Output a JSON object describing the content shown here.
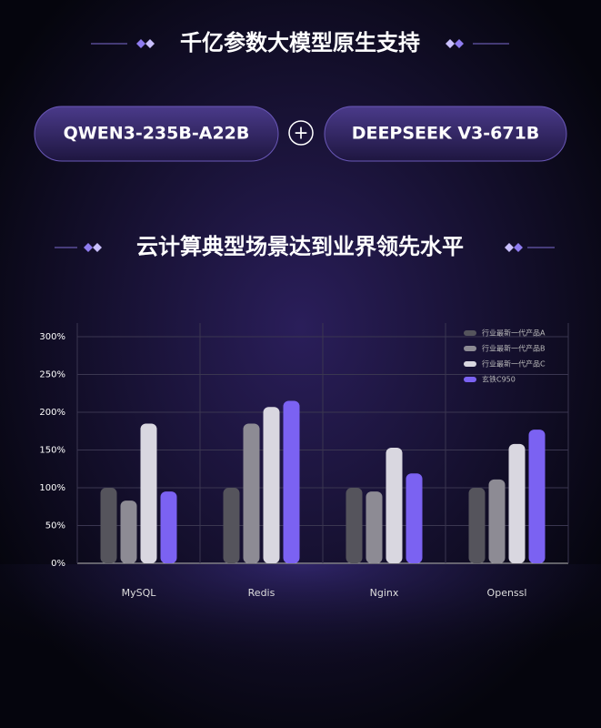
{
  "header": {
    "title": "千亿参数大模型原生支持",
    "model_a": "QWEN3-235B-A22B",
    "plus": "+",
    "model_b": "DEEPSEEK V3-671B",
    "subtitle": "云计算典型场景达到业界领先水平"
  },
  "chart_data": {
    "type": "bar",
    "categories": [
      "MySQL",
      "Redis",
      "Nginx",
      "Openssl"
    ],
    "series": [
      {
        "name": "行业最新一代产品A",
        "color": "#55545c",
        "values": [
          100,
          100,
          100,
          100
        ]
      },
      {
        "name": "行业最新一代产品B",
        "color": "#8d8b94",
        "values": [
          83,
          185,
          95,
          111
        ]
      },
      {
        "name": "行业最新一代产品C",
        "color": "#d9d7e0",
        "values": [
          185,
          207,
          153,
          158
        ]
      },
      {
        "name": "玄铁C950",
        "color": "#7b62f2",
        "values": [
          95,
          215,
          119,
          177
        ]
      }
    ],
    "ylim": [
      0,
      300
    ],
    "yticks": [
      {
        "value": 0,
        "label": "0%"
      },
      {
        "value": 50,
        "label": "50%"
      },
      {
        "value": 100,
        "label": "100%"
      },
      {
        "value": 150,
        "label": "150%"
      },
      {
        "value": 200,
        "label": "200%"
      },
      {
        "value": 250,
        "label": "250%"
      },
      {
        "value": 300,
        "label": "300%"
      }
    ],
    "grid": true,
    "legend": "top-right"
  }
}
